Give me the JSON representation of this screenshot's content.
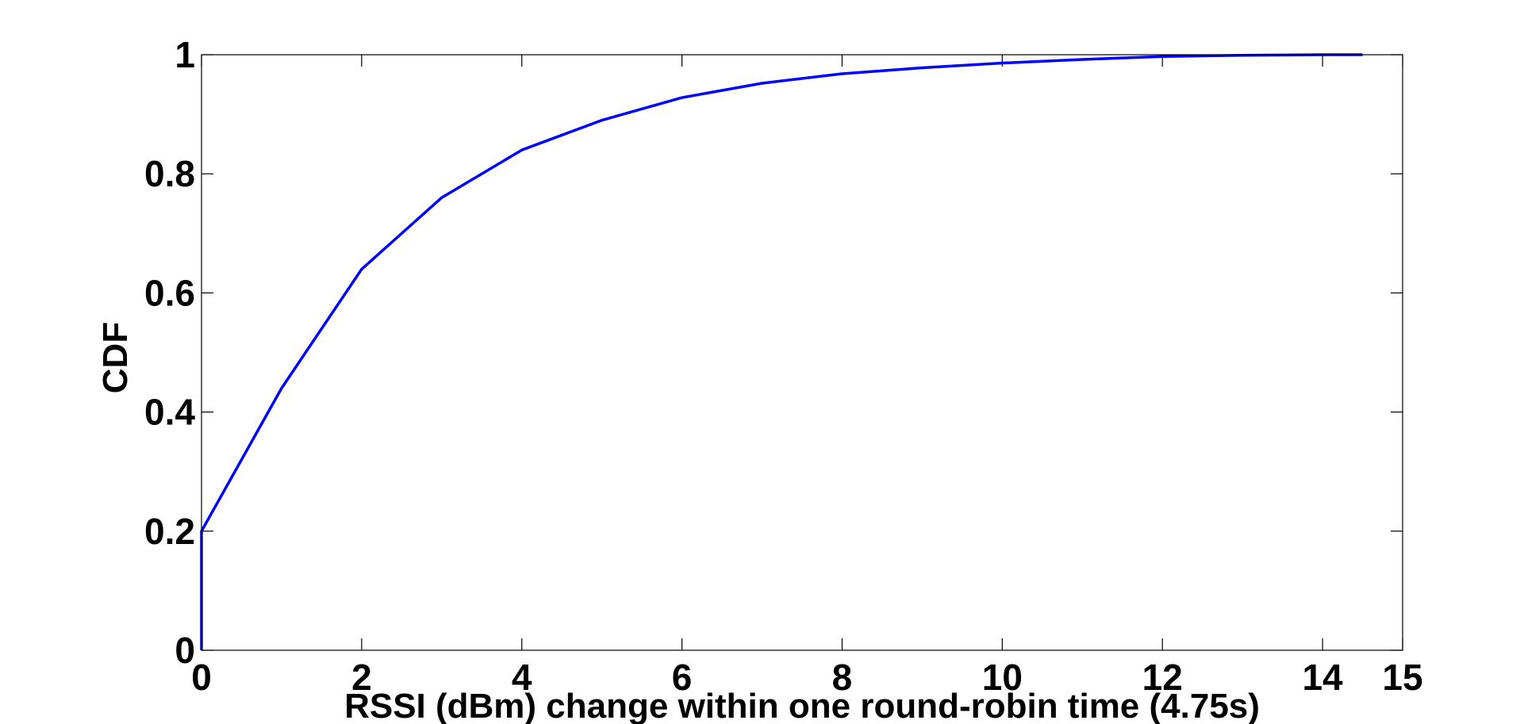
{
  "chart_data": {
    "type": "line",
    "title": "",
    "xlabel": "RSSI (dBm) change within one round-robin time (4.75s)",
    "ylabel": "CDF",
    "xlim": [
      0,
      15
    ],
    "ylim": [
      0,
      1
    ],
    "x_ticks": [
      0,
      2,
      4,
      6,
      8,
      10,
      12,
      14,
      15
    ],
    "x_tick_labels": [
      "0",
      "2",
      "4",
      "6",
      "8",
      "10",
      "12",
      "14",
      "15"
    ],
    "y_ticks": [
      0,
      0.2,
      0.4,
      0.6,
      0.8,
      1
    ],
    "y_tick_labels": [
      "0",
      "0.2",
      "0.4",
      "0.6",
      "0.8",
      "1"
    ],
    "grid": false,
    "legend": "none",
    "series": [
      {
        "color": "#0000ff",
        "x": [
          0,
          0,
          1,
          2,
          3,
          4,
          5,
          6,
          7,
          8,
          9,
          10,
          11,
          12,
          13,
          14,
          14.5
        ],
        "y": [
          0,
          0.2,
          0.44,
          0.64,
          0.76,
          0.84,
          0.89,
          0.928,
          0.952,
          0.968,
          0.978,
          0.986,
          0.992,
          0.997,
          0.999,
          1.0,
          1.0
        ]
      }
    ]
  }
}
